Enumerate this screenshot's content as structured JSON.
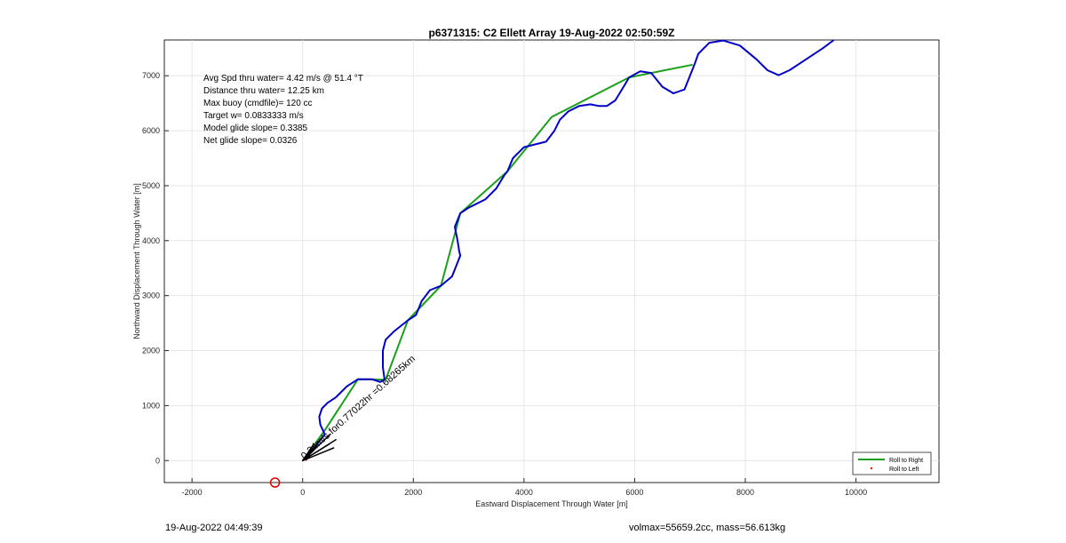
{
  "chart_data": {
    "type": "line",
    "title": "p6371315: C2 Ellett Array 19-Aug-2022 02:50:59Z",
    "xlabel": "Eastward Displacement Through Water [m]",
    "ylabel": "Northward Displacement Through Water [m]",
    "xlim": [
      -2500,
      11500
    ],
    "ylim": [
      -400,
      7650
    ],
    "xticks": [
      -2000,
      0,
      2000,
      4000,
      6000,
      8000,
      10000
    ],
    "yticks": [
      0,
      1000,
      2000,
      3000,
      4000,
      5000,
      6000,
      7000
    ],
    "grid": true,
    "legend_position": "bottom-right",
    "stats": [
      "Avg Spd thru water=  4.42 m/s @  51.4 °T",
      "Distance thru water= 12.25 km",
      "Max buoy (cmdfile)= 120 cc",
      "Target w= 0.0833333 m/s",
      "Model glide slope= 0.3385",
      "Net glide slope= 0.0326"
    ],
    "annotation": "0.24m/s for0.77022hr =0.68265km",
    "annotation_angle_deg": -42,
    "series": [
      {
        "name": "Roll to Right",
        "color": "#1aa01a",
        "points": [
          [
            0,
            0
          ],
          [
            400,
            550
          ],
          [
            1000,
            1480
          ],
          [
            1500,
            1470
          ],
          [
            1900,
            2550
          ],
          [
            2500,
            3180
          ],
          [
            2850,
            4500
          ],
          [
            3700,
            5260
          ],
          [
            4500,
            6250
          ],
          [
            5900,
            6970
          ],
          [
            7050,
            7200
          ]
        ]
      },
      {
        "name": "Roll to Left",
        "color": "#ff0000",
        "points": [
          [
            60,
            20
          ]
        ]
      },
      {
        "color": "#0000c8",
        "points": [
          [
            100,
            80
          ],
          [
            300,
            350
          ],
          [
            400,
            480
          ],
          [
            320,
            650
          ],
          [
            300,
            800
          ],
          [
            350,
            950
          ],
          [
            450,
            1050
          ],
          [
            600,
            1150
          ],
          [
            800,
            1350
          ],
          [
            1000,
            1480
          ],
          [
            1250,
            1480
          ],
          [
            1400,
            1430
          ],
          [
            1480,
            1470
          ],
          [
            1450,
            1700
          ],
          [
            1450,
            2000
          ],
          [
            1500,
            2200
          ],
          [
            1650,
            2350
          ],
          [
            1900,
            2550
          ],
          [
            2050,
            2650
          ],
          [
            2150,
            2900
          ],
          [
            2300,
            3100
          ],
          [
            2500,
            3180
          ],
          [
            2700,
            3350
          ],
          [
            2850,
            3730
          ],
          [
            2830,
            3800
          ],
          [
            2800,
            4000
          ],
          [
            2750,
            4250
          ],
          [
            2850,
            4500
          ],
          [
            3000,
            4600
          ],
          [
            3300,
            4750
          ],
          [
            3500,
            4950
          ],
          [
            3650,
            5200
          ],
          [
            3700,
            5260
          ],
          [
            3800,
            5500
          ],
          [
            4000,
            5700
          ],
          [
            4200,
            5750
          ],
          [
            4400,
            5800
          ],
          [
            4550,
            6000
          ],
          [
            4650,
            6200
          ],
          [
            4800,
            6350
          ],
          [
            5000,
            6450
          ],
          [
            5200,
            6480
          ],
          [
            5350,
            6450
          ],
          [
            5500,
            6450
          ],
          [
            5650,
            6550
          ],
          [
            5800,
            6800
          ],
          [
            5900,
            6970
          ],
          [
            6100,
            7080
          ],
          [
            6300,
            7050
          ],
          [
            6500,
            6800
          ],
          [
            6700,
            6680
          ],
          [
            6900,
            6750
          ],
          [
            7000,
            7000
          ],
          [
            7080,
            7200
          ],
          [
            7150,
            7400
          ],
          [
            7350,
            7600
          ],
          [
            7600,
            7640
          ],
          [
            7900,
            7550
          ],
          [
            8200,
            7300
          ],
          [
            8400,
            7100
          ],
          [
            8600,
            7010
          ],
          [
            8800,
            7100
          ],
          [
            9100,
            7300
          ],
          [
            9400,
            7500
          ],
          [
            9600,
            7650
          ]
        ]
      },
      {
        "color": "#000000",
        "points": [
          [
            0,
            0
          ],
          [
            500,
            480
          ],
          [
            0,
            0
          ],
          [
            600,
            380
          ],
          [
            0,
            0
          ],
          [
            480,
            300
          ],
          [
            0,
            0
          ],
          [
            350,
            420
          ],
          [
            0,
            0
          ],
          [
            560,
            230
          ],
          [
            0,
            0
          ],
          [
            200,
            300
          ]
        ]
      }
    ],
    "marker_circle": {
      "x": -500,
      "y": -400,
      "color": "#dd0000"
    }
  },
  "footer": {
    "left": "19-Aug-2022 04:49:39",
    "right": "volmax=55659.2cc, mass=56.613kg"
  }
}
